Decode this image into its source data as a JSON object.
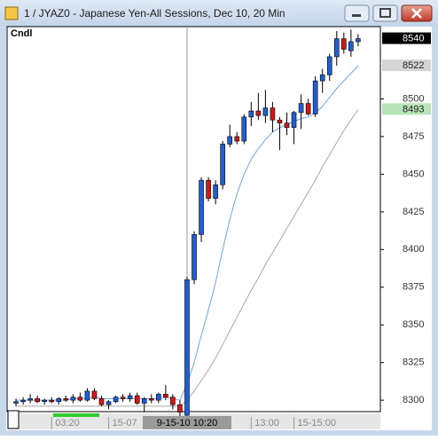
{
  "chart_data": {
    "type": "candlestick",
    "title": "1 / JYAZ0 - Japanese Yen-All Sessions, Dec 10, 20 Min",
    "label": "Cndl",
    "open": [
      8298,
      8299,
      8300,
      8301,
      8299,
      8300,
      8299,
      8301,
      8300,
      8302,
      8300,
      8306,
      8301,
      8297,
      8299,
      8302,
      8301,
      8303,
      8298,
      8301,
      8300,
      8304,
      8302,
      8297,
      8290,
      8380,
      8410,
      8446,
      8434,
      8443,
      8470,
      8475,
      8472,
      8488,
      8492,
      8489,
      8494,
      8486,
      8484,
      8481,
      8491,
      8497,
      8490,
      8512,
      8516,
      8528,
      8540,
      8532,
      8538
    ],
    "high": [
      8301,
      8302,
      8304,
      8303,
      8301,
      8302,
      8302,
      8303,
      8304,
      8305,
      8308,
      8308,
      8303,
      8300,
      8303,
      8304,
      8305,
      8305,
      8302,
      8304,
      8305,
      8310,
      8304,
      8300,
      8382,
      8412,
      8448,
      8448,
      8446,
      8472,
      8483,
      8478,
      8490,
      8498,
      8504,
      8506,
      8498,
      8488,
      8491,
      8492,
      8503,
      8500,
      8515,
      8520,
      8530,
      8545,
      8544,
      8546,
      8543
    ],
    "low": [
      8296,
      8297,
      8298,
      8298,
      8297,
      8298,
      8297,
      8299,
      8298,
      8299,
      8299,
      8300,
      8296,
      8294,
      8298,
      8299,
      8299,
      8297,
      8292,
      8298,
      8298,
      8300,
      8294,
      8288,
      8288,
      8377,
      8405,
      8432,
      8430,
      8440,
      8468,
      8470,
      8470,
      8482,
      8486,
      8484,
      8478,
      8466,
      8476,
      8470,
      8480,
      8489,
      8488,
      8504,
      8512,
      8522,
      8530,
      8528,
      8535
    ],
    "close": [
      8299,
      8300,
      8301,
      8299,
      8300,
      8299,
      8301,
      8300,
      8302,
      8300,
      8306,
      8301,
      8297,
      8299,
      8302,
      8301,
      8303,
      8298,
      8301,
      8300,
      8304,
      8302,
      8297,
      8292,
      8380,
      8410,
      8446,
      8434,
      8443,
      8470,
      8475,
      8472,
      8488,
      8492,
      8489,
      8494,
      8486,
      8484,
      8481,
      8491,
      8497,
      8490,
      8512,
      8516,
      8528,
      8540,
      8533,
      8538,
      8540
    ],
    "up_color": "#1f5fd6",
    "down_color": "#d01818",
    "last_color": "#000000",
    "lines": [
      {
        "color": "#6fa3e6",
        "label_color": "#d4d4d4",
        "values": [
          8300,
          8300,
          8300,
          8300,
          8300,
          8300,
          8300,
          8300,
          8301,
          8301,
          8301,
          8302,
          8301,
          8301,
          8301,
          8301,
          8301,
          8301,
          8301,
          8301,
          8301,
          8302,
          8301,
          8300,
          8311,
          8325,
          8343,
          8360,
          8378,
          8400,
          8420,
          8437,
          8450,
          8460,
          8467,
          8473,
          8478,
          8481,
          8483,
          8485,
          8487,
          8488,
          8491,
          8495,
          8501,
          8507,
          8512,
          8517,
          8522
        ]
      },
      {
        "color": "#a8a8a8",
        "label_color": "#b9e3b9",
        "values": [
          8296,
          8296,
          8296,
          8296,
          8296,
          8296,
          8296,
          8296,
          8296,
          8296,
          8296,
          8296,
          8296,
          8296,
          8296,
          8296,
          8296,
          8296,
          8296,
          8296,
          8296,
          8296,
          8296,
          8296,
          8300,
          8306,
          8313,
          8320,
          8328,
          8337,
          8346,
          8355,
          8364,
          8373,
          8381,
          8390,
          8398,
          8406,
          8414,
          8422,
          8430,
          8438,
          8446,
          8455,
          8463,
          8471,
          8479,
          8486,
          8493
        ]
      }
    ],
    "ylim": [
      8293,
      8548
    ],
    "yticks": [
      8300,
      8325,
      8350,
      8375,
      8400,
      8425,
      8450,
      8475,
      8500
    ],
    "xlim": [
      -1,
      51
    ],
    "xticks": [
      {
        "value": 5,
        "label": "03:20"
      },
      {
        "value": 13,
        "label": "15-07"
      },
      {
        "value": 33,
        "label": "13:00"
      },
      {
        "value": 39,
        "label": "15-15:00"
      }
    ],
    "cursor": {
      "value": 24,
      "label": "9-15-10 10:20"
    }
  }
}
